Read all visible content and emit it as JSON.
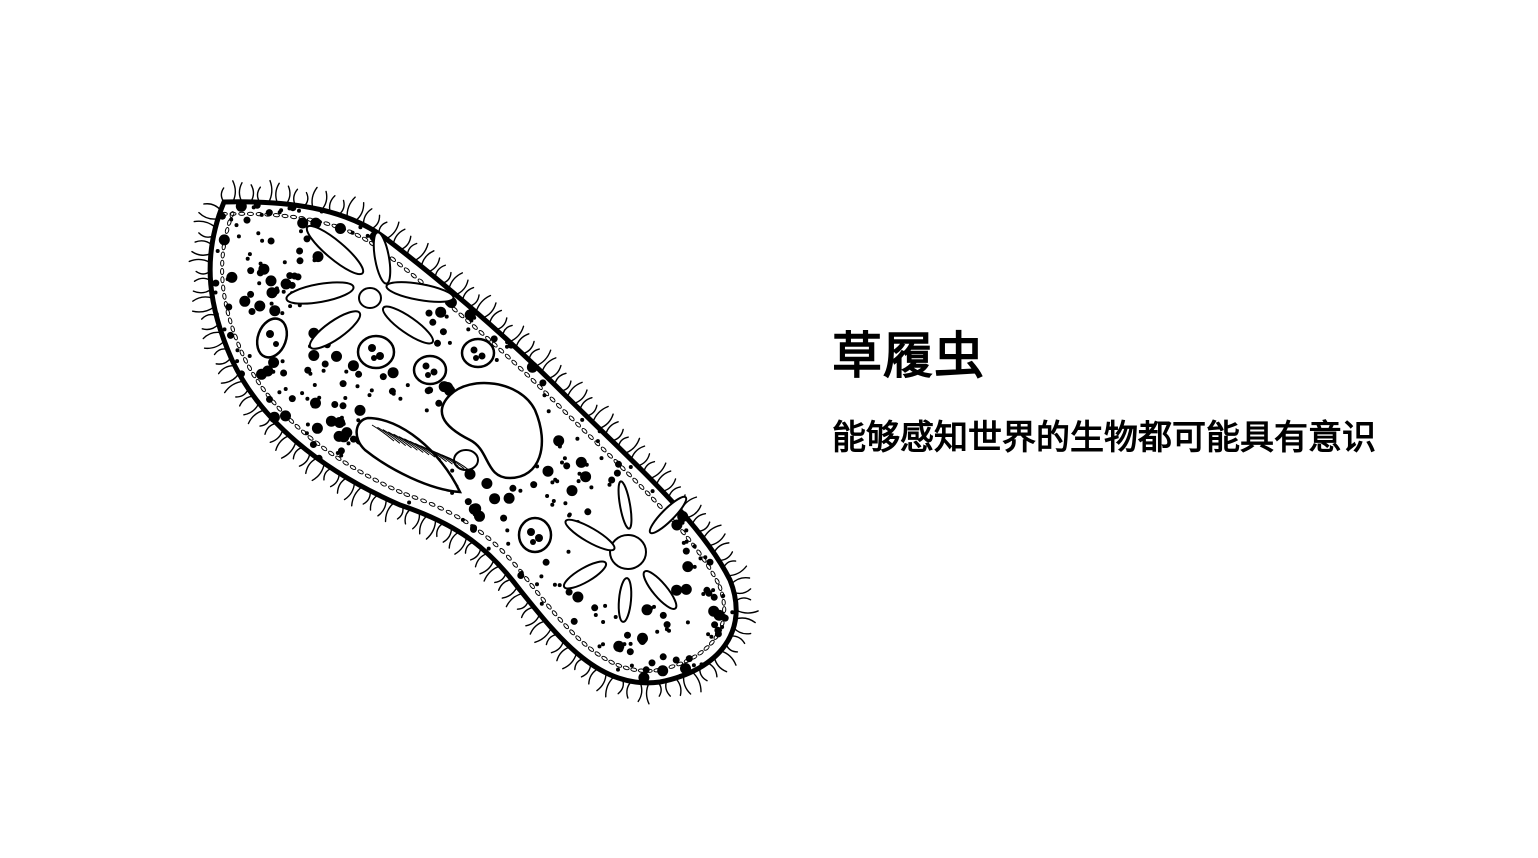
{
  "slide": {
    "title": "草履虫",
    "subtitle": "能够感知世界的生物都可能具有意识"
  },
  "illustration": {
    "subject": "paramecium-line-drawing",
    "stroke_color": "#000000",
    "fill_color": "#ffffff"
  }
}
